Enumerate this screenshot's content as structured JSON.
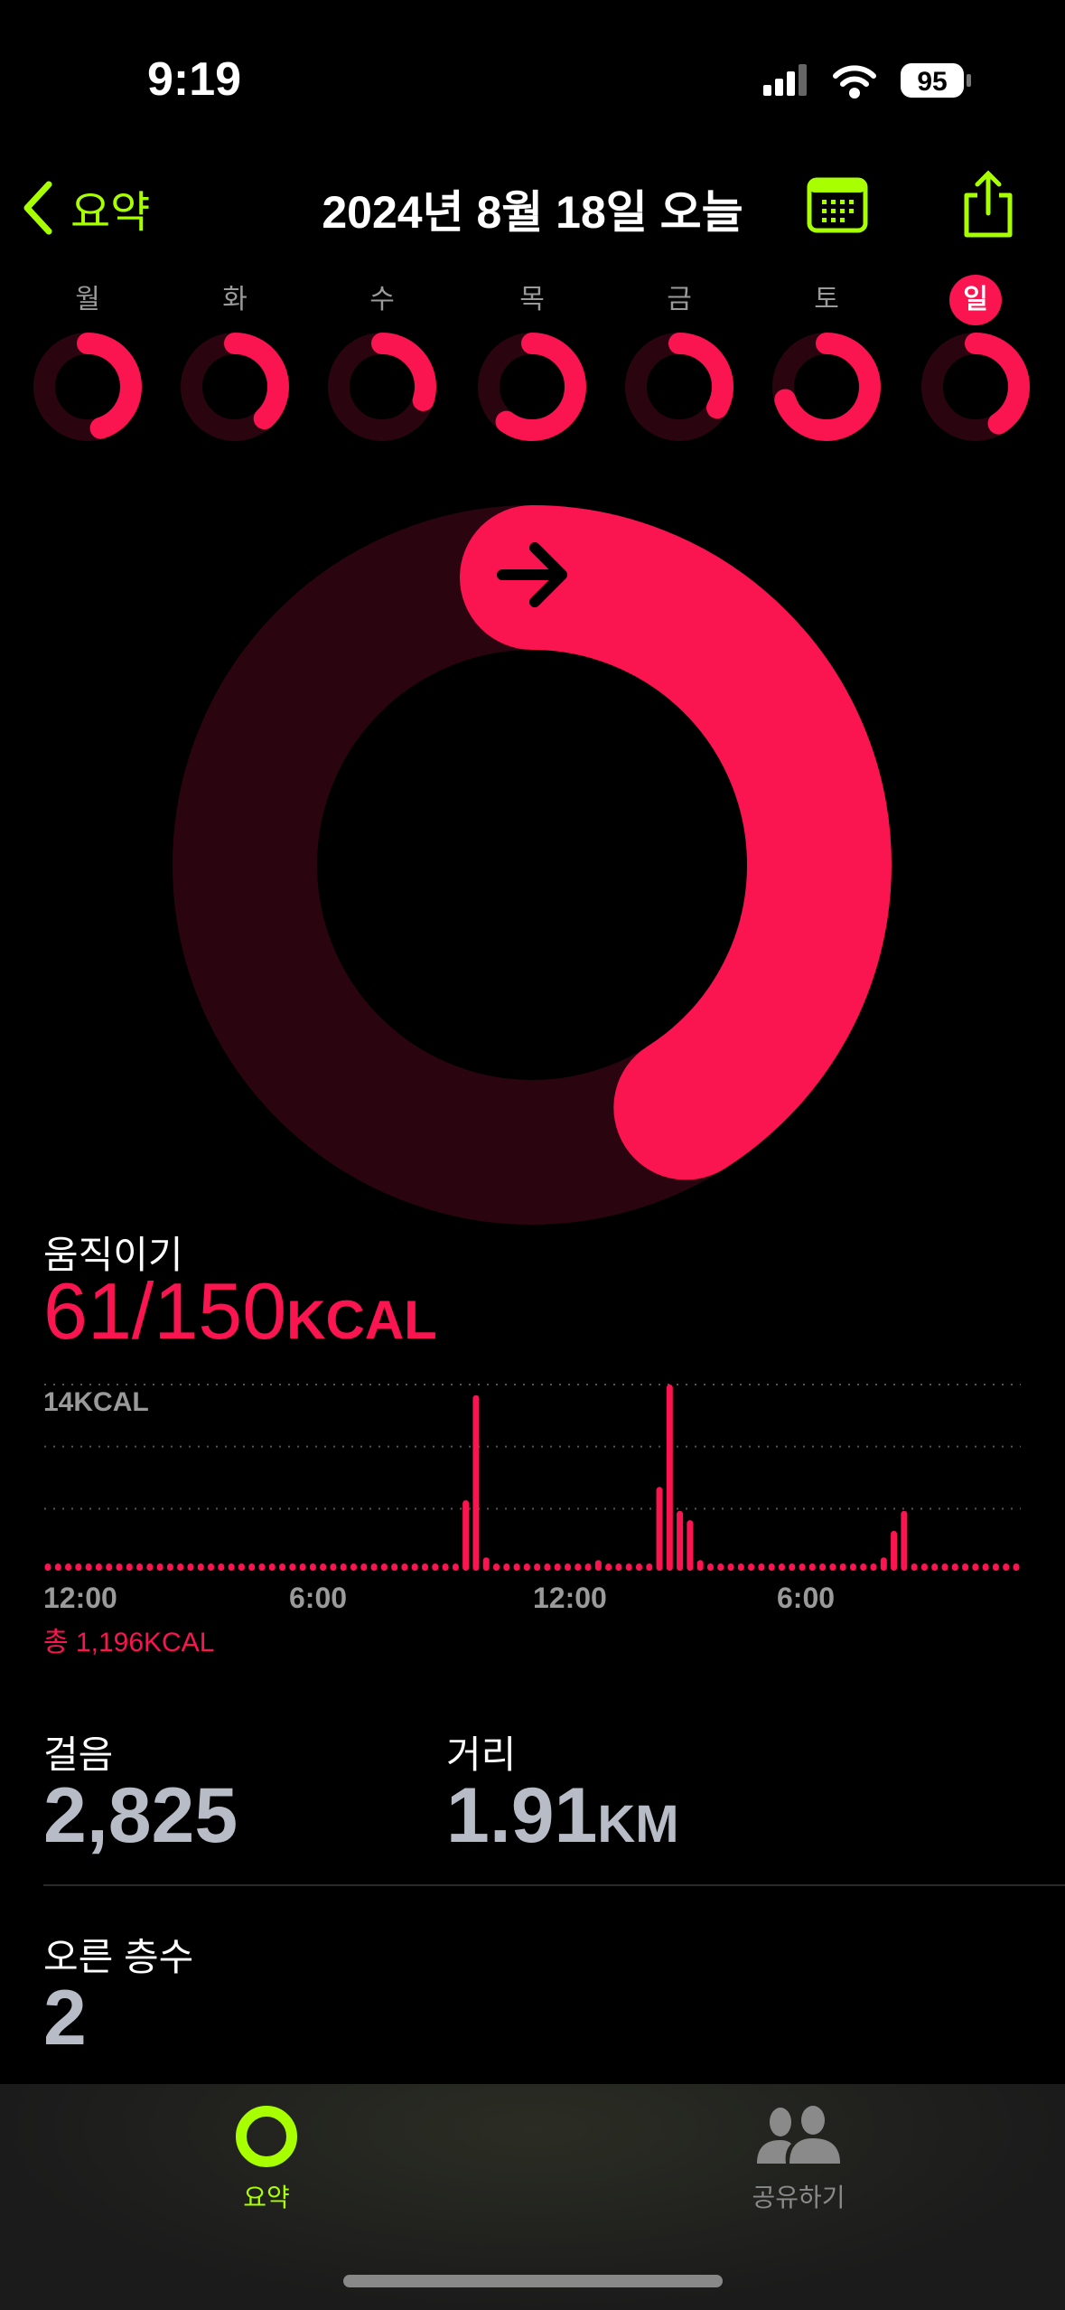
{
  "status_bar": {
    "time": "9:19",
    "battery": "95"
  },
  "header": {
    "back_label": "요약",
    "title": "2024년 8월 18일 오늘",
    "icons": [
      "calendar-icon",
      "share-icon"
    ]
  },
  "week": {
    "days": [
      {
        "label": "월",
        "progress": 0.45
      },
      {
        "label": "화",
        "progress": 0.38
      },
      {
        "label": "수",
        "progress": 0.3
      },
      {
        "label": "목",
        "progress": 0.6
      },
      {
        "label": "금",
        "progress": 0.33
      },
      {
        "label": "토",
        "progress": 0.7
      },
      {
        "label": "일",
        "progress": 0.41,
        "selected": true
      }
    ]
  },
  "move": {
    "label": "움직이기",
    "value": "61/150",
    "unit": "KCAL",
    "progress": 0.41,
    "color": "#fa1450",
    "track_color": "#2a0510"
  },
  "chart_data": {
    "type": "bar",
    "ylabel_top": "14KCAL",
    "ylim": [
      0,
      14
    ],
    "grid": true,
    "x_tick_labels": [
      "12:00",
      "6:00",
      "12:00",
      "6:00"
    ],
    "interval_minutes": 15,
    "nonzero": {
      "41": 5.3,
      "42": 13.2,
      "43": 1.0,
      "54": 0.8,
      "59": 0.5,
      "60": 6.3,
      "61": 14,
      "62": 4.5,
      "63": 3.8,
      "64": 0.8,
      "82": 1.0,
      "83": 3.0,
      "84": 4.5
    },
    "bar_count": 96,
    "total": "총 1,196KCAL"
  },
  "steps": {
    "label": "걸음",
    "value": "2,825"
  },
  "distance": {
    "label": "거리",
    "value": "1.91",
    "unit": "KM"
  },
  "floors": {
    "label": "오른 층수",
    "value": "2"
  },
  "tabs": [
    {
      "label": "요약",
      "active": true
    },
    {
      "label": "공유하기",
      "active": false
    }
  ],
  "colors": {
    "accent": "#a8ff00",
    "move": "#fa1450"
  }
}
